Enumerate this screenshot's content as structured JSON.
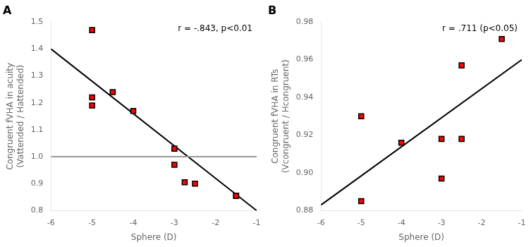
{
  "chart_data": [
    {
      "type": "scatter",
      "title": "A",
      "xlabel": "Sphere (D)",
      "ylabel": [
        "Congruent fVHA in acuity",
        "(Vattended / Hattended)"
      ],
      "annotation": "r = -.843, p<0.01",
      "xlim": [
        -6,
        -1
      ],
      "ylim": [
        0.8,
        1.5
      ],
      "xticks": [
        -6,
        -5,
        -4,
        -3,
        -2,
        -1
      ],
      "yticks": [
        0.8,
        0.9,
        {
          "value": 1.0,
          "label": "1.0"
        },
        1.1,
        1.2,
        1.3,
        1.4,
        1.5
      ],
      "grid": false,
      "series": [
        {
          "type": "line",
          "color": "#000000",
          "x": [
            -6,
            -1
          ],
          "values": [
            1.4,
            0.8
          ]
        },
        {
          "type": "line",
          "color": "#999999",
          "x": [
            -6,
            -1
          ],
          "values": [
            1.0,
            1.0
          ]
        },
        {
          "type": "scatter",
          "marker": "square",
          "color": "#FF0000",
          "x": [
            -5,
            -5,
            -5,
            -4.5,
            -4,
            -3,
            -3,
            -2.75,
            -2.5,
            -1.5,
            -1.5
          ],
          "values": [
            1.47,
            1.22,
            1.19,
            1.24,
            1.17,
            1.03,
            0.97,
            0.905,
            0.9,
            0.855,
            0.855
          ]
        }
      ]
    },
    {
      "type": "scatter",
      "title": "B",
      "xlabel": "Sphere (D)",
      "ylabel": [
        "Congruent fVHA in RTs",
        "(Vcongruent / Hcongruent)"
      ],
      "annotation": "r = .711 (p<0.05)",
      "xlim": [
        -6,
        -1
      ],
      "ylim": [
        0.88,
        0.98
      ],
      "xticks": [
        -6,
        -5,
        -4,
        -3,
        -2,
        -1
      ],
      "yticks": [
        0.88,
        {
          "value": 0.9,
          "label": "0.90"
        },
        0.92,
        0.94,
        0.96,
        0.98
      ],
      "grid": false,
      "series": [
        {
          "type": "line",
          "color": "#000000",
          "x": [
            -6,
            -1
          ],
          "values": [
            0.883,
            0.96
          ]
        },
        {
          "type": "scatter",
          "marker": "square",
          "color": "#FF0000",
          "x": [
            -5,
            -5,
            -4,
            -3,
            -3,
            -2.5,
            -2.5,
            -1.5
          ],
          "values": [
            0.93,
            0.885,
            0.916,
            0.897,
            0.918,
            0.918,
            0.957,
            0.971
          ]
        }
      ]
    }
  ]
}
